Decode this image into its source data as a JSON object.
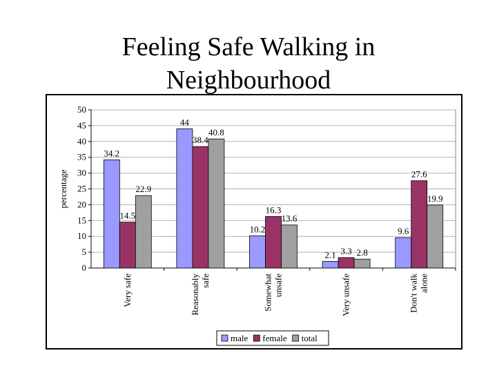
{
  "chart_data": {
    "type": "bar",
    "title_lines": [
      "Feeling Safe Walking in",
      "Neighbourhood"
    ],
    "ylabel": "percentage",
    "ylim": [
      0,
      50
    ],
    "yticks": [
      "0",
      "5",
      "10",
      "15",
      "20",
      "25",
      "30",
      "35",
      "40",
      "45",
      "50"
    ],
    "categories": [
      [
        "Very safe"
      ],
      [
        "Reasonably",
        "safe"
      ],
      [
        "Somewhat",
        "unsafe"
      ],
      [
        "Very unsafe"
      ],
      [
        "Don't walk",
        "alone"
      ]
    ],
    "series": [
      {
        "name": "male",
        "color": "#9999ff",
        "values": [
          34.2,
          44,
          10.2,
          2.1,
          9.6
        ],
        "labels": [
          "34.2",
          "44",
          "10.2",
          "2.1",
          "9.6"
        ]
      },
      {
        "name": "female",
        "color": "#993366",
        "values": [
          14.5,
          38.4,
          16.3,
          3.3,
          27.6
        ],
        "labels": [
          "14.5",
          "38.4",
          "16.3",
          "3.3",
          "27.6"
        ]
      },
      {
        "name": "total",
        "color": "#a0a0a0",
        "values": [
          22.9,
          40.8,
          13.6,
          2.8,
          19.9
        ],
        "labels": [
          "22.9",
          "40.8",
          "13.6",
          "2.8",
          "19.9"
        ]
      }
    ],
    "legend_position": "bottom"
  }
}
